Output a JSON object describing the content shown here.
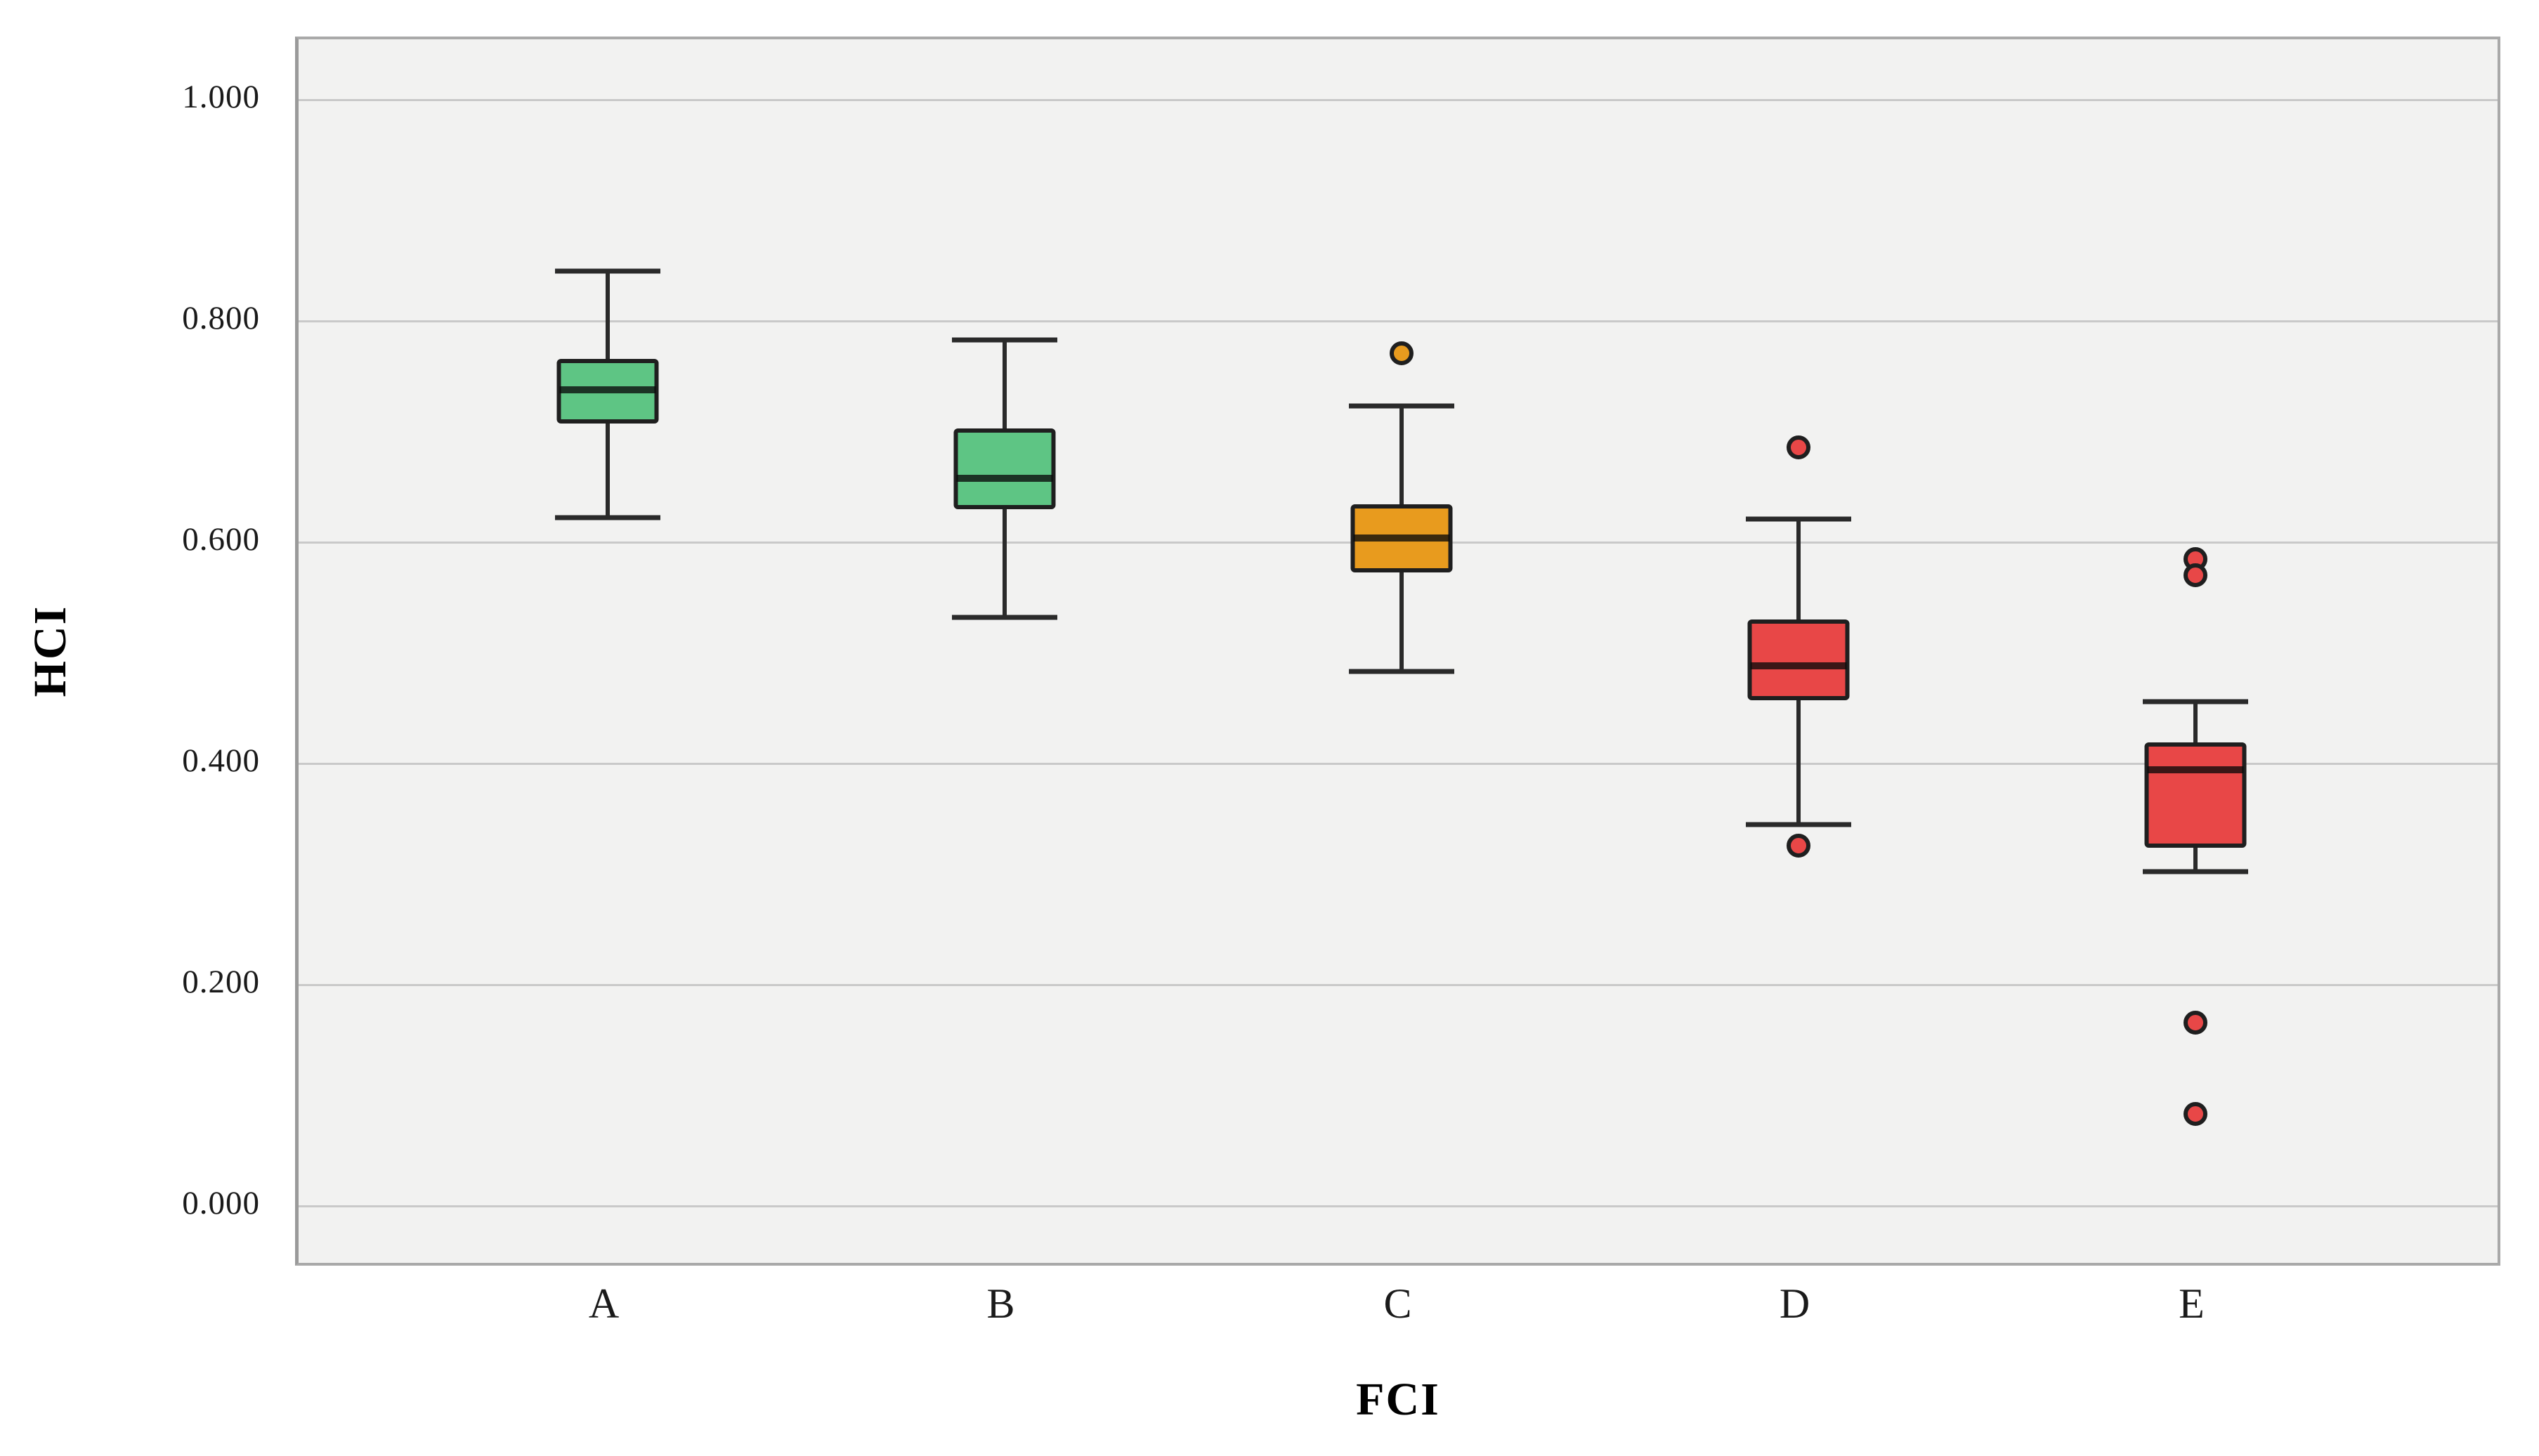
{
  "chart_data": {
    "type": "boxplot",
    "title": "",
    "xlabel": "FCI",
    "ylabel": "HCI",
    "categories": [
      "A",
      "B",
      "C",
      "D",
      "E"
    ],
    "y_ticks": [
      {
        "label": "1.000",
        "value": 1.0
      },
      {
        "label": "0.800",
        "value": 0.8
      },
      {
        "label": "0.600",
        "value": 0.6
      },
      {
        "label": "0.400",
        "value": 0.4
      },
      {
        "label": "0.200",
        "value": 0.2
      },
      {
        "label": "0.000",
        "value": 0.0
      }
    ],
    "ylim_visible": [
      -0.056,
      1.055
    ],
    "grid": "horizontal",
    "plot_background": "#f2f2f1",
    "gridline_color": "#c9c9c9",
    "series": [
      {
        "category": "A",
        "color": "#5ec584",
        "whisker_low": 0.622,
        "q1": 0.707,
        "median": 0.738,
        "q3": 0.766,
        "whisker_high": 0.845,
        "outliers": []
      },
      {
        "category": "B",
        "color": "#5ec584",
        "whisker_low": 0.532,
        "q1": 0.63,
        "median": 0.658,
        "q3": 0.703,
        "whisker_high": 0.783,
        "outliers": []
      },
      {
        "category": "C",
        "color": "#e89b1e",
        "whisker_low": 0.483,
        "q1": 0.573,
        "median": 0.604,
        "q3": 0.634,
        "whisker_high": 0.723,
        "outliers": [
          0.771
        ]
      },
      {
        "category": "D",
        "color": "#e84747",
        "whisker_low": 0.345,
        "q1": 0.457,
        "median": 0.488,
        "q3": 0.53,
        "whisker_high": 0.621,
        "outliers": [
          0.686,
          0.326
        ]
      },
      {
        "category": "E",
        "color": "#e84747",
        "whisker_low": 0.302,
        "q1": 0.324,
        "median": 0.394,
        "q3": 0.419,
        "whisker_high": 0.456,
        "outliers": [
          0.585,
          0.57,
          0.166,
          0.083
        ]
      }
    ]
  }
}
